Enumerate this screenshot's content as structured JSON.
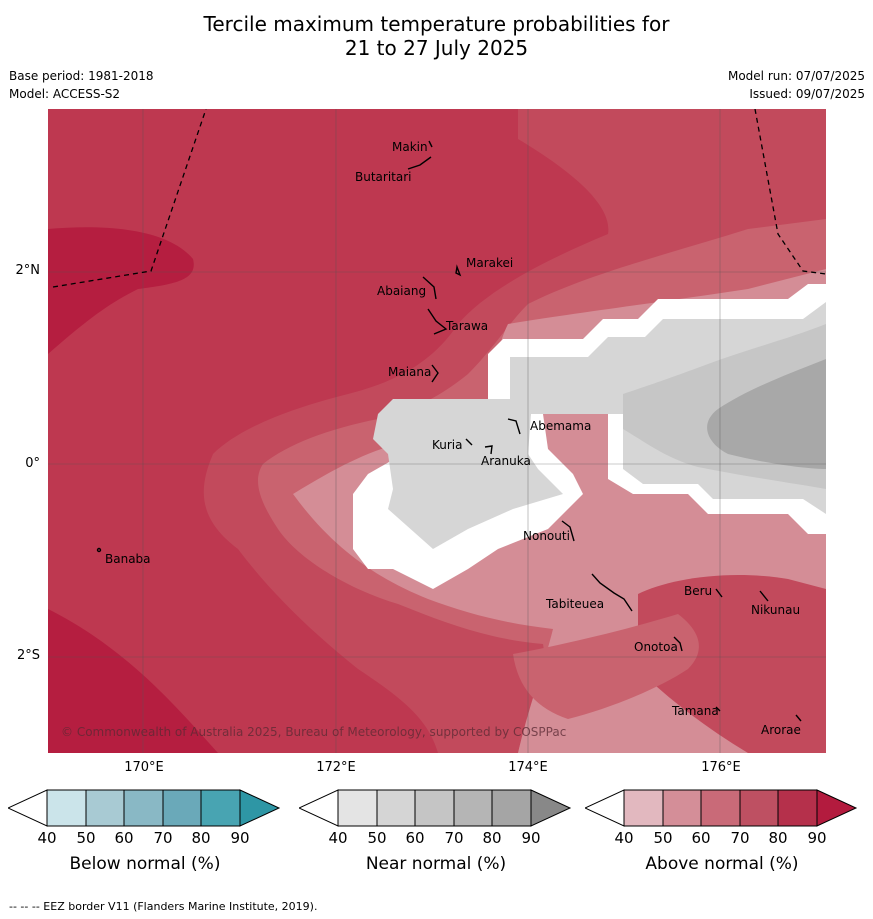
{
  "title": {
    "line1": "Tercile maximum temperature probabilities for",
    "line2": "21 to 27 July 2025"
  },
  "meta": {
    "base_period": "Base period: 1981-2018",
    "model": "Model: ACCESS-S2",
    "model_run": "Model run: 07/07/2025",
    "issued": "Issued: 09/07/2025"
  },
  "axes": {
    "longitude_labels": [
      "170°E",
      "172°E",
      "174°E",
      "176°E"
    ],
    "latitude_labels": [
      "2°N",
      "0°",
      "2°S"
    ]
  },
  "islands": [
    {
      "name": "Makin"
    },
    {
      "name": "Butaritari"
    },
    {
      "name": "Marakei"
    },
    {
      "name": "Abaiang"
    },
    {
      "name": "Tarawa"
    },
    {
      "name": "Maiana"
    },
    {
      "name": "Abemama"
    },
    {
      "name": "Kuria"
    },
    {
      "name": "Aranuka"
    },
    {
      "name": "Banaba"
    },
    {
      "name": "Nonouti"
    },
    {
      "name": "Tabiteuea"
    },
    {
      "name": "Beru"
    },
    {
      "name": "Nikunau"
    },
    {
      "name": "Onotoa"
    },
    {
      "name": "Tamana"
    },
    {
      "name": "Arorae"
    }
  ],
  "copyright": "© Commonwealth of Australia 2025, Bureau of Meteorology, supported by COSPPac",
  "colorbars": [
    {
      "title": "Below normal (%)",
      "ticks": [
        "40",
        "50",
        "60",
        "70",
        "80",
        "90"
      ],
      "colors": [
        "#ffffff",
        "#cbe4ea",
        "#a8cad3",
        "#89b8c5",
        "#6aa9b9",
        "#48a4b2",
        "#2e96a5"
      ]
    },
    {
      "title": "Near normal (%)",
      "ticks": [
        "40",
        "50",
        "60",
        "70",
        "80",
        "90"
      ],
      "colors": [
        "#ffffff",
        "#e4e4e4",
        "#d5d5d5",
        "#c5c5c5",
        "#b5b5b5",
        "#a5a5a5",
        "#888888"
      ]
    },
    {
      "title": "Above normal (%)",
      "ticks": [
        "40",
        "50",
        "60",
        "70",
        "80",
        "90"
      ],
      "colors": [
        "#ffffff",
        "#e2b8bf",
        "#d48e98",
        "#c96a78",
        "#be5062",
        "#b5304b",
        "#b31b3e"
      ]
    }
  ],
  "footnote": "--  --  -- EEZ border V11 (Flanders Marine Institute, 2019)."
}
